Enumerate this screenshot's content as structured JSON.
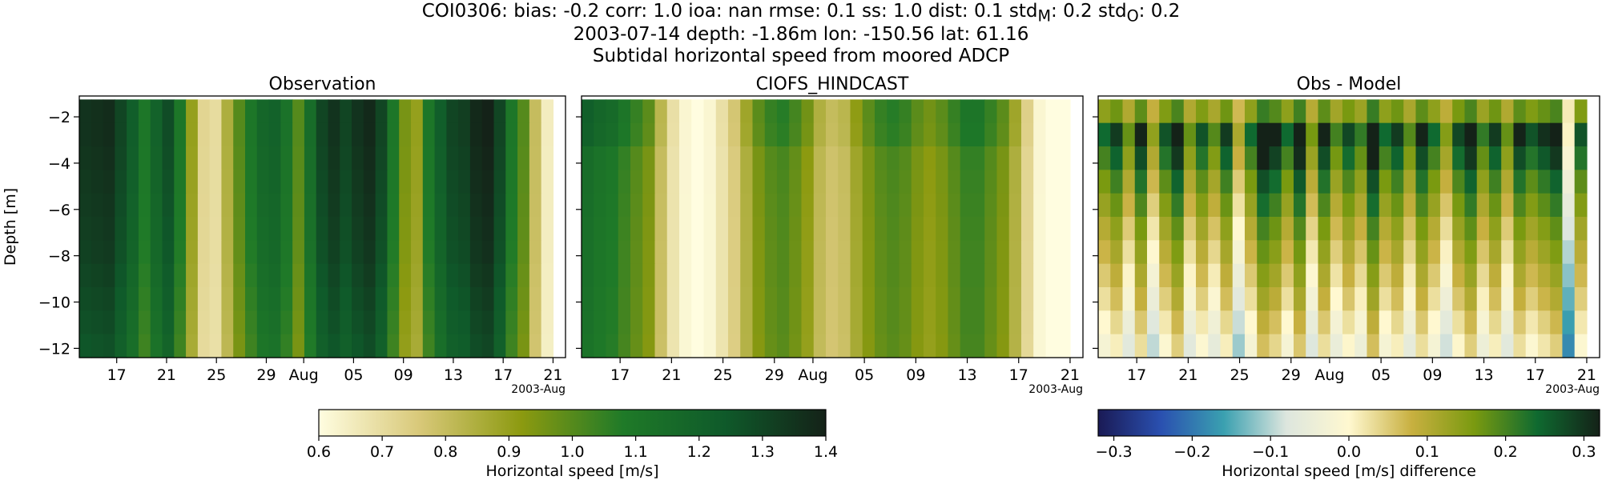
{
  "figure": {
    "title_lines": [
      "COI0306: bias: -0.2  corr: 1.0  ioa: nan  rmse: 0.1  ss: 1.0  dist: 0.1  std<sub>M</sub>: 0.2  std<sub>O</sub>: 0.2",
      "2003-07-14 depth: -1.86m lon: -150.56 lat: 61.16",
      "Subtidal horizontal speed from moored ADCP"
    ]
  },
  "chart_data": [
    {
      "type": "heatmap",
      "title": "Observation",
      "ylabel": "Depth [m]",
      "xlabel": "",
      "x_tick_labels": [
        "17",
        "21",
        "25",
        "29",
        "Aug",
        "05",
        "09",
        "13",
        "17",
        "21"
      ],
      "x_offset_label": "2003-Aug",
      "y_ticks": [
        -2,
        -4,
        -6,
        -8,
        -10,
        -12
      ],
      "ylim": [
        -12.4,
        -1.1
      ],
      "x_range": [
        "2003-07-14",
        "2003-08-22"
      ],
      "data_x_range": [
        "2003-07-14",
        "2003-08-21"
      ],
      "column_values": [
        1.35,
        1.36,
        1.37,
        1.3,
        1.22,
        1.1,
        1.2,
        1.28,
        1.1,
        0.9,
        0.72,
        0.7,
        0.85,
        1.0,
        1.1,
        1.18,
        1.2,
        1.12,
        1.0,
        1.15,
        1.3,
        1.35,
        1.3,
        1.35,
        1.38,
        1.3,
        1.1,
        0.95,
        0.9,
        1.1,
        1.22,
        1.3,
        1.32,
        1.38,
        1.4,
        1.3,
        1.1,
        1.0,
        0.8,
        0.65
      ],
      "depth_factor": [
        1.0,
        1.0,
        0.99,
        0.98,
        0.97,
        0.96,
        0.95,
        0.93,
        0.91,
        0.89,
        0.87
      ],
      "colormap": "speed",
      "vmin": 0.6,
      "vmax": 1.4
    },
    {
      "type": "heatmap",
      "title": "CIOFS_HINDCAST",
      "ylabel": "",
      "xlabel": "",
      "x_tick_labels": [
        "17",
        "21",
        "25",
        "29",
        "Aug",
        "05",
        "09",
        "13",
        "17",
        "21"
      ],
      "x_offset_label": "2003-Aug",
      "y_ticks": [
        -2,
        -4,
        -6,
        -8,
        -10,
        -12
      ],
      "ylim": [
        -12.4,
        -1.1
      ],
      "x_range": [
        "2003-07-14",
        "2003-08-22"
      ],
      "data_x_range": [
        "2003-07-14",
        "2003-08-21"
      ],
      "column_values": [
        1.15,
        1.12,
        1.1,
        1.05,
        1.0,
        0.95,
        0.8,
        0.68,
        0.62,
        0.6,
        0.62,
        0.68,
        0.75,
        0.85,
        0.95,
        1.0,
        1.02,
        0.98,
        0.92,
        0.82,
        0.78,
        0.8,
        0.88,
        0.95,
        1.0,
        1.02,
        1.0,
        0.95,
        0.92,
        0.95,
        1.0,
        1.05,
        1.05,
        1.0,
        0.95,
        0.85,
        0.72,
        0.62,
        0.6,
        0.6
      ],
      "depth_factor": [
        1.12,
        1.1,
        1.0,
        0.99,
        0.98,
        0.97,
        0.96,
        0.96,
        0.95,
        0.95,
        0.94
      ],
      "colormap": "speed",
      "vmin": 0.6,
      "vmax": 1.4
    },
    {
      "type": "heatmap",
      "title": "Obs - Model",
      "ylabel": "",
      "xlabel": "",
      "x_tick_labels": [
        "17",
        "21",
        "25",
        "29",
        "Aug",
        "05",
        "09",
        "13",
        "17",
        "21"
      ],
      "x_offset_label": "2003-Aug",
      "y_ticks": [
        -2,
        -4,
        -6,
        -8,
        -10,
        -12
      ],
      "ylim": [
        -12.4,
        -1.1
      ],
      "x_range": [
        "2003-07-14",
        "2003-08-22"
      ],
      "data_x_range": [
        "2003-07-14",
        "2003-08-21"
      ],
      "column_values": [
        0.2,
        0.24,
        0.15,
        0.26,
        0.12,
        0.22,
        0.28,
        0.15,
        0.22,
        0.16,
        0.24,
        0.1,
        0.2,
        0.3,
        0.27,
        0.2,
        0.29,
        0.14,
        0.26,
        0.17,
        0.23,
        0.18,
        0.3,
        0.2,
        0.24,
        0.16,
        0.26,
        0.2,
        0.13,
        0.23,
        0.28,
        0.18,
        0.24,
        0.15,
        0.26,
        0.22,
        0.25,
        0.28,
        0.02,
        0.22
      ],
      "depth_factor": [
        0.7,
        1.3,
        1.2,
        1.1,
        1.05,
        1.0,
        0.98,
        0.96,
        0.94,
        0.9,
        0.88
      ],
      "colormap": "diff",
      "vmin": -0.32,
      "vmax": 0.32
    }
  ],
  "colorbars": [
    {
      "label": "Horizontal speed [m/s]",
      "ticks": [
        0.6,
        0.7,
        0.8,
        0.9,
        1.0,
        1.1,
        1.2,
        1.3,
        1.4
      ],
      "tick_labels": [
        "0.6",
        "0.7",
        "0.8",
        "0.9",
        "1.0",
        "1.1",
        "1.2",
        "1.3",
        "1.4"
      ],
      "vmin": 0.6,
      "vmax": 1.4,
      "colormap": "speed"
    },
    {
      "label": "Horizontal speed [m/s] difference",
      "ticks": [
        -0.3,
        -0.2,
        -0.1,
        0.0,
        0.1,
        0.2,
        0.3
      ],
      "tick_labels": [
        "−0.3",
        "−0.2",
        "−0.1",
        "0.0",
        "0.1",
        "0.2",
        "0.3"
      ],
      "vmin": -0.32,
      "vmax": 0.32,
      "colormap": "diff"
    }
  ],
  "colormaps": {
    "speed": [
      "#fffde0",
      "#d8c878",
      "#8c9a10",
      "#1f7a28",
      "#0f5a2a",
      "#142218"
    ],
    "diff": [
      "#1a1a55",
      "#2a50b0",
      "#3aa0b0",
      "#dde6de",
      "#fff8d0",
      "#c8b040",
      "#7a9a10",
      "#0f6a30",
      "#142218"
    ]
  }
}
